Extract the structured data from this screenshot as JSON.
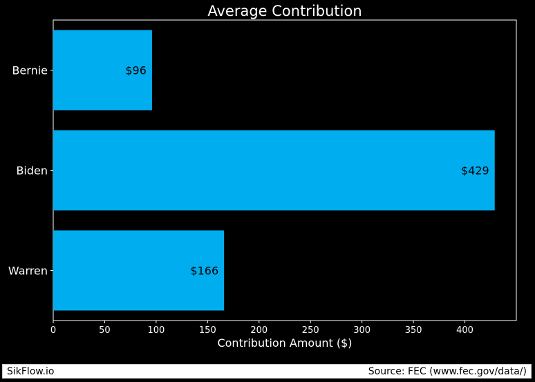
{
  "chart_data": {
    "type": "bar",
    "orientation": "horizontal",
    "title": "Average Contribution",
    "xlabel": "Contribution Amount ($)",
    "ylabel": "",
    "categories": [
      "Bernie",
      "Biden",
      "Warren"
    ],
    "values": [
      96,
      429,
      166
    ],
    "data_labels": [
      "$96",
      "$429",
      "$166"
    ],
    "xlim": [
      0,
      450
    ],
    "xticks": [
      0,
      50,
      100,
      150,
      200,
      250,
      300,
      350,
      400
    ],
    "grid": false,
    "bar_color": "#00aef0",
    "background_color": "#000000",
    "text_color": "#ffffff",
    "label_color": "#000000"
  },
  "footer": {
    "left": "SikFlow.io",
    "right": "Source: FEC (www.fec.gov/data/)"
  }
}
